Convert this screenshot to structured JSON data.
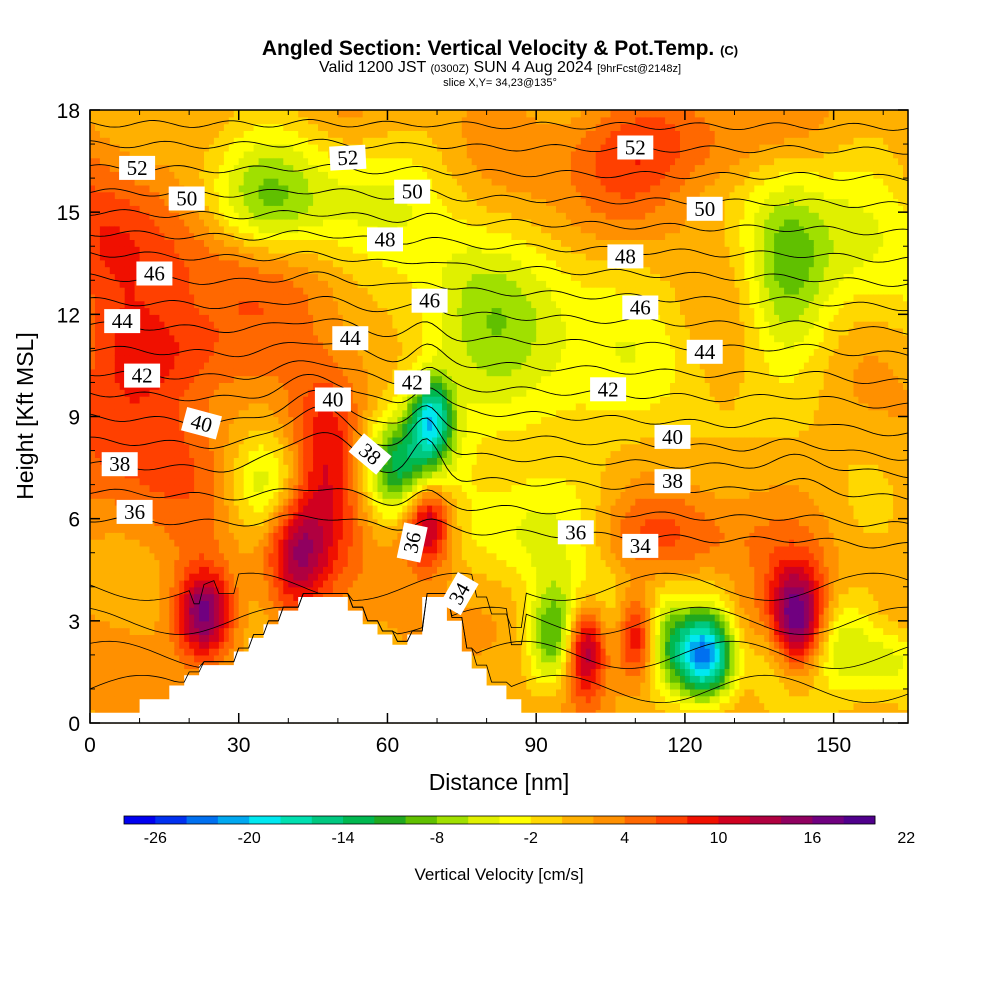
{
  "header": {
    "title_main": "Angled Section: Vertical Velocity & Pot.Temp.",
    "title_tag": "(C)",
    "valid_a": "Valid 1200 JST",
    "valid_utc": "(0300Z)",
    "valid_b": "SUN 4 Aug 2024",
    "valid_fcst": "[9hrFcst@2148z]",
    "slice": "slice X,Y= 34,23@135°"
  },
  "chart_data": {
    "type": "heatmap",
    "xlabel": "Distance [nm]",
    "ylabel": "Height [Kft MSL]",
    "xlim": [
      0,
      165
    ],
    "ylim": [
      0,
      18
    ],
    "xticks": [
      "0",
      "30",
      "60",
      "90",
      "120",
      "150"
    ],
    "yticks": [
      "0",
      "3",
      "6",
      "9",
      "12",
      "15",
      "18"
    ],
    "colorbar": {
      "label": "Vertical Velocity [cm/s]",
      "ticks": [
        "-26",
        "-20",
        "-14",
        "-8",
        "-2",
        "4",
        "10",
        "16",
        "22"
      ],
      "colors": [
        "#0000f0",
        "#0030f0",
        "#0070f0",
        "#00a8f0",
        "#00e8f0",
        "#00e0b0",
        "#00c880",
        "#00b850",
        "#20a820",
        "#60c000",
        "#a0e000",
        "#e0f000",
        "#ffff00",
        "#ffd800",
        "#ffb000",
        "#ff9000",
        "#ff6800",
        "#ff4000",
        "#f01000",
        "#d00020",
        "#b00040",
        "#900060",
        "#700080",
        "#50008c"
      ]
    },
    "terrain_profile_kft": [
      [
        0,
        0.3
      ],
      [
        10,
        0.3
      ],
      [
        10,
        0.7
      ],
      [
        16,
        0.7
      ],
      [
        16,
        1.1
      ],
      [
        19,
        1.1
      ],
      [
        19,
        1.4
      ],
      [
        22,
        1.4
      ],
      [
        22,
        1.7
      ],
      [
        29,
        1.7
      ],
      [
        29,
        2.1
      ],
      [
        32,
        2.1
      ],
      [
        32,
        2.5
      ],
      [
        35,
        2.5
      ],
      [
        35,
        2.9
      ],
      [
        38,
        2.9
      ],
      [
        38,
        3.3
      ],
      [
        42,
        3.3
      ],
      [
        42,
        3.7
      ],
      [
        52,
        3.7
      ],
      [
        52,
        3.3
      ],
      [
        55,
        3.3
      ],
      [
        55,
        2.9
      ],
      [
        58,
        2.9
      ],
      [
        58,
        2.6
      ],
      [
        61,
        2.6
      ],
      [
        61,
        2.3
      ],
      [
        64,
        2.3
      ],
      [
        64,
        2.6
      ],
      [
        67,
        2.6
      ],
      [
        67,
        3.7
      ],
      [
        72,
        3.7
      ],
      [
        72,
        3.0
      ],
      [
        75,
        3.0
      ],
      [
        75,
        2.1
      ],
      [
        77,
        2.1
      ],
      [
        77,
        1.6
      ],
      [
        80,
        1.6
      ],
      [
        80,
        1.1
      ],
      [
        84,
        1.1
      ],
      [
        84,
        0.7
      ],
      [
        87,
        0.7
      ],
      [
        87,
        0.3
      ],
      [
        165,
        0.3
      ]
    ],
    "velocity_features": [
      {
        "x": 23,
        "z": 3.2,
        "value": 16,
        "sx": 1.3,
        "sz": 1.3
      },
      {
        "x": 42,
        "z": 5.0,
        "value": 12,
        "sx": 1.5,
        "sz": 1.8
      },
      {
        "x": 48,
        "z": 8.0,
        "value": 10,
        "sx": 2.0,
        "sz": 2.5
      },
      {
        "x": 36,
        "z": 7.0,
        "value": -8,
        "sx": 2.0,
        "sz": 1.5
      },
      {
        "x": 31,
        "z": 13.5,
        "value": 6,
        "sx": 4.0,
        "sz": 1.6
      },
      {
        "x": 35,
        "z": 15.0,
        "value": -10,
        "sx": 3.0,
        "sz": 2.0
      },
      {
        "x": 18,
        "z": 11.0,
        "value": 6,
        "sx": 4.0,
        "sz": 1.5
      },
      {
        "x": 57,
        "z": 15.5,
        "value": -5,
        "sx": 3.0,
        "sz": 2.0
      },
      {
        "x": 63,
        "z": 7.5,
        "value": -14,
        "sx": 2.0,
        "sz": 1.5
      },
      {
        "x": 69,
        "z": 9.0,
        "value": -16,
        "sx": 1.0,
        "sz": 1.2
      },
      {
        "x": 68,
        "z": 6.0,
        "value": 16,
        "sx": 1.2,
        "sz": 1.4
      },
      {
        "x": 76,
        "z": 11.5,
        "value": -5,
        "sx": 3.5,
        "sz": 3.0
      },
      {
        "x": 95,
        "z": 11.0,
        "value": -5,
        "sx": 6.0,
        "sz": 4.0
      },
      {
        "x": 90,
        "z": 5.5,
        "value": -6,
        "sx": 4.0,
        "sz": 1.5
      },
      {
        "x": 94,
        "z": 2.5,
        "value": -14,
        "sx": 1.3,
        "sz": 1.5
      },
      {
        "x": 100,
        "z": 2.2,
        "value": 16,
        "sx": 1.1,
        "sz": 1.3
      },
      {
        "x": 106,
        "z": 2.5,
        "value": -8,
        "sx": 1.3,
        "sz": 1.5
      },
      {
        "x": 110,
        "z": 2.5,
        "value": 16,
        "sx": 1.1,
        "sz": 1.3
      },
      {
        "x": 115,
        "z": 2.5,
        "value": -8,
        "sx": 1.3,
        "sz": 1.5
      },
      {
        "x": 124,
        "z": 2.0,
        "value": -24,
        "sx": 1.5,
        "sz": 1.3
      },
      {
        "x": 133,
        "z": 2.5,
        "value": 6,
        "sx": 1.3,
        "sz": 1.5
      },
      {
        "x": 137,
        "z": 2.5,
        "value": -10,
        "sx": 1.3,
        "sz": 1.5
      },
      {
        "x": 142,
        "z": 3.0,
        "value": 22,
        "sx": 1.5,
        "sz": 1.5
      },
      {
        "x": 150,
        "z": 2.5,
        "value": -8,
        "sx": 2.0,
        "sz": 1.5
      },
      {
        "x": 140,
        "z": 13.5,
        "value": -8,
        "sx": 2.0,
        "sz": 3.0
      },
      {
        "x": 155,
        "z": 14.0,
        "value": -5,
        "sx": 4.0,
        "sz": 3.0
      },
      {
        "x": 120,
        "z": 17.0,
        "value": 5,
        "sx": 5.0,
        "sz": 1.5
      },
      {
        "x": 104,
        "z": 16.0,
        "value": 4,
        "sx": 3.0,
        "sz": 2.0
      },
      {
        "x": 10,
        "z": 8.0,
        "value": 5,
        "sx": 4.0,
        "sz": 3.0
      },
      {
        "x": 3,
        "z": 14.0,
        "value": 6,
        "sx": 3.0,
        "sz": 2.5
      },
      {
        "x": 162,
        "z": 1.8,
        "value": -6,
        "sx": 2.0,
        "sz": 1.0
      },
      {
        "x": 112,
        "z": 5.5,
        "value": 5,
        "sx": 5.0,
        "sz": 1.2
      }
    ],
    "isentropes": [
      {
        "theta": 36,
        "z0": 6.0,
        "z1": 5.2,
        "amp": 0.3
      },
      {
        "theta": 37,
        "z0": 6.8,
        "z1": 5.8,
        "amp": 0.4
      },
      {
        "theta": 38,
        "z0": 7.6,
        "z1": 6.6,
        "amp": 1.2
      },
      {
        "theta": 39,
        "z0": 8.3,
        "z1": 7.3,
        "amp": 1.2
      },
      {
        "theta": 40,
        "z0": 9.0,
        "z1": 7.8,
        "amp": 1.0
      },
      {
        "theta": 41,
        "z0": 9.7,
        "z1": 8.5,
        "amp": 0.8
      },
      {
        "theta": 42,
        "z0": 10.3,
        "z1": 9.3,
        "amp": 0.6
      },
      {
        "theta": 43,
        "z0": 11.0,
        "z1": 10.0,
        "amp": 0.5
      },
      {
        "theta": 44,
        "z0": 11.7,
        "z1": 10.8,
        "amp": 0.4
      },
      {
        "theta": 45,
        "z0": 12.4,
        "z1": 11.5,
        "amp": 0.3
      },
      {
        "theta": 46,
        "z0": 13.1,
        "z1": 12.2,
        "amp": 0.3
      },
      {
        "theta": 47,
        "z0": 13.8,
        "z1": 12.9,
        "amp": 0.2
      },
      {
        "theta": 48,
        "z0": 14.4,
        "z1": 13.6,
        "amp": 0.2
      },
      {
        "theta": 49,
        "z0": 15.0,
        "z1": 14.4,
        "amp": 0.15
      },
      {
        "theta": 50,
        "z0": 15.6,
        "z1": 15.2,
        "amp": 0.15
      },
      {
        "theta": 51,
        "z0": 16.3,
        "z1": 16.0,
        "amp": 0.1
      },
      {
        "theta": 52,
        "z0": 17.0,
        "z1": 16.8,
        "amp": 0.1
      },
      {
        "theta": 53,
        "z0": 17.6,
        "z1": 17.5,
        "amp": 0.05
      }
    ],
    "low_isentropes_kft": [
      1.0,
      2.0,
      3.0,
      4.0
    ],
    "contour_labels": [
      {
        "text": "52",
        "x": 9.5,
        "z": 16.3,
        "rot": 0
      },
      {
        "text": "52",
        "x": 52,
        "z": 16.6,
        "rot": -3
      },
      {
        "text": "52",
        "x": 110,
        "z": 16.9,
        "rot": 0
      },
      {
        "text": "50",
        "x": 19.5,
        "z": 15.4,
        "rot": 0
      },
      {
        "text": "50",
        "x": 65,
        "z": 15.6,
        "rot": 0
      },
      {
        "text": "50",
        "x": 124,
        "z": 15.1,
        "rot": 0
      },
      {
        "text": "48",
        "x": 59.5,
        "z": 14.2,
        "rot": 0
      },
      {
        "text": "48",
        "x": 108,
        "z": 13.7,
        "rot": 0
      },
      {
        "text": "46",
        "x": 13,
        "z": 13.2,
        "rot": 0
      },
      {
        "text": "46",
        "x": 68.5,
        "z": 12.4,
        "rot": 0
      },
      {
        "text": "46",
        "x": 111,
        "z": 12.2,
        "rot": 0
      },
      {
        "text": "44",
        "x": 6.5,
        "z": 11.8,
        "rot": 0
      },
      {
        "text": "44",
        "x": 52.5,
        "z": 11.3,
        "rot": 0
      },
      {
        "text": "44",
        "x": 124,
        "z": 10.9,
        "rot": 0
      },
      {
        "text": "42",
        "x": 10.5,
        "z": 10.2,
        "rot": 0
      },
      {
        "text": "42",
        "x": 65,
        "z": 10.0,
        "rot": 0
      },
      {
        "text": "42",
        "x": 104.5,
        "z": 9.8,
        "rot": 0
      },
      {
        "text": "40",
        "x": 22.5,
        "z": 8.8,
        "rot": 15
      },
      {
        "text": "40",
        "x": 49,
        "z": 9.5,
        "rot": 0
      },
      {
        "text": "40",
        "x": 117.5,
        "z": 8.4,
        "rot": 0
      },
      {
        "text": "38",
        "x": 6,
        "z": 7.6,
        "rot": 0
      },
      {
        "text": "38",
        "x": 56.5,
        "z": 7.9,
        "rot": 40
      },
      {
        "text": "38",
        "x": 117.5,
        "z": 7.1,
        "rot": 0
      },
      {
        "text": "36",
        "x": 9,
        "z": 6.2,
        "rot": 0
      },
      {
        "text": "36",
        "x": 65,
        "z": 5.3,
        "rot": -78
      },
      {
        "text": "36",
        "x": 98,
        "z": 5.6,
        "rot": 0
      },
      {
        "text": "34",
        "x": 111,
        "z": 5.2,
        "rot": 0
      },
      {
        "text": "34",
        "x": 74.5,
        "z": 3.8,
        "rot": -60
      }
    ]
  }
}
